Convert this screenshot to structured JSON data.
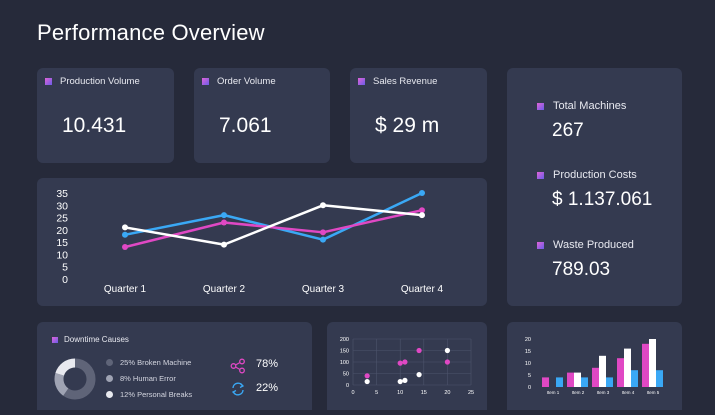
{
  "page": {
    "title": "Performance Overview"
  },
  "kpis": [
    {
      "label": "Production Volume",
      "value": "10.431"
    },
    {
      "label": "Order Volume",
      "value": "7.061"
    },
    {
      "label": "Sales Revenue",
      "value": "$ 29 m"
    }
  ],
  "side_metrics": [
    {
      "label": "Total Machines",
      "value": "267"
    },
    {
      "label": "Production Costs",
      "value": "$ 1.137.061"
    },
    {
      "label": "Waste Produced",
      "value": "789.03"
    }
  ],
  "downtime": {
    "title": "Downtime Causes",
    "items": [
      {
        "label": "25% Broken Machine",
        "color": "#5f6478"
      },
      {
        "label": "8% Human Error",
        "color": "#9fa3b3"
      },
      {
        "label": "12% Personal Breaks",
        "color": "#e8e9ef"
      }
    ],
    "stats": [
      {
        "icon": "share-icon",
        "value": "78%"
      },
      {
        "icon": "refresh-icon",
        "value": "22%"
      }
    ]
  },
  "colors": {
    "background": "#262a3a",
    "card": "#343a50",
    "blue": "#3aa8f5",
    "pink": "#e048c4",
    "white": "#ffffff"
  },
  "chart_data": [
    {
      "type": "line",
      "categories": [
        "Quarter 1",
        "Quarter 2",
        "Quarter 3",
        "Quarter 4"
      ],
      "ylim": [
        0,
        35
      ],
      "yticks": [
        0,
        5,
        10,
        15,
        20,
        25,
        30,
        35
      ],
      "series": [
        {
          "color": "#3aa8f5",
          "values": [
            18,
            26,
            16,
            35
          ]
        },
        {
          "color": "#e048c4",
          "values": [
            13,
            23,
            19,
            28
          ]
        },
        {
          "color": "#ffffff",
          "values": [
            21,
            14,
            30,
            26
          ]
        }
      ]
    },
    {
      "type": "scatter",
      "xlim": [
        0,
        25
      ],
      "ylim": [
        0,
        200
      ],
      "xticks": [
        0,
        5,
        10,
        15,
        20,
        25
      ],
      "yticks": [
        0,
        50,
        100,
        150,
        200
      ],
      "series": [
        {
          "color": "#e048c4",
          "points": [
            [
              3,
              40
            ],
            [
              10,
              95
            ],
            [
              11,
              100
            ],
            [
              14,
              150
            ],
            [
              20,
              100
            ]
          ]
        },
        {
          "color": "#ffffff",
          "points": [
            [
              3,
              15
            ],
            [
              10,
              15
            ],
            [
              11,
              20
            ],
            [
              14,
              45
            ],
            [
              20,
              150
            ]
          ]
        }
      ]
    },
    {
      "type": "bar",
      "categories": [
        "Item 1",
        "Item 2",
        "Item 3",
        "Item 4",
        "Item 5"
      ],
      "ylim": [
        0,
        20
      ],
      "yticks": [
        0,
        5,
        10,
        15,
        20
      ],
      "series": [
        {
          "color": "#e048c4",
          "values": [
            4,
            6,
            8,
            12,
            18
          ]
        },
        {
          "color": "#ffffff",
          "values": [
            0,
            6,
            13,
            16,
            20
          ]
        },
        {
          "color": "#3aa8f5",
          "values": [
            4,
            4,
            4,
            7,
            7
          ]
        }
      ]
    }
  ]
}
